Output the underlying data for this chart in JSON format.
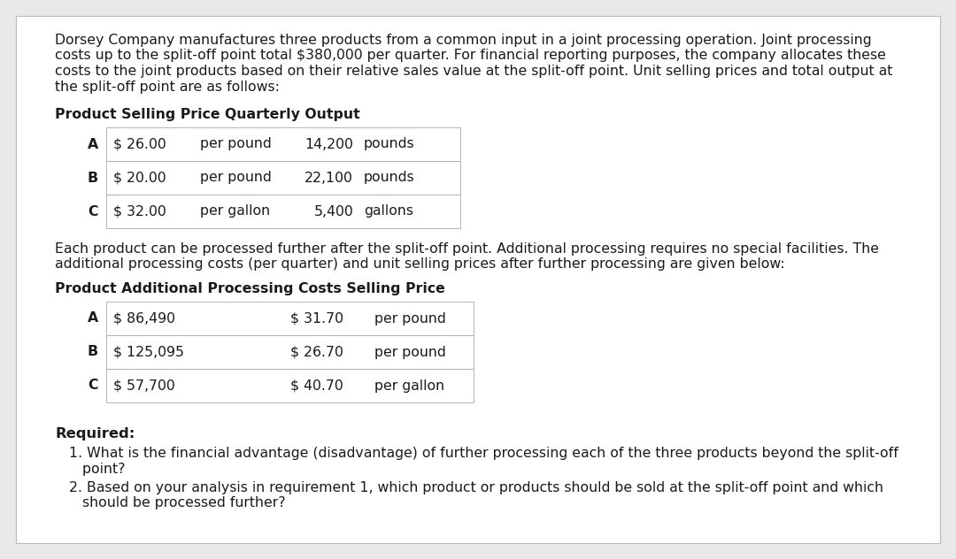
{
  "bg_color": "#e8e8e8",
  "page_bg": "#ffffff",
  "border_color": "#bbbbbb",
  "text_color": "#1a1a1a",
  "intro_text_lines": [
    "Dorsey Company manufactures three products from a common input in a joint processing operation. Joint processing",
    "costs up to the split-off point total $380,000 per quarter. For financial reporting purposes, the company allocates these",
    "costs to the joint products based on their relative sales value at the split-off point. Unit selling prices and total output at",
    "the split-off point are as follows:"
  ],
  "table1_header": "Product Selling Price Quarterly Output",
  "table1_rows": [
    [
      "A",
      "$ 26.00",
      "per pound",
      "14,200",
      "pounds"
    ],
    [
      "B",
      "$ 20.00",
      "per pound",
      "22,100",
      "pounds"
    ],
    [
      "C",
      "$ 32.00",
      "per gallon",
      "5,400",
      "gallons"
    ]
  ],
  "middle_text_lines": [
    "Each product can be processed further after the split-off point. Additional processing requires no special facilities. The",
    "additional processing costs (per quarter) and unit selling prices after further processing are given below:"
  ],
  "table2_header": "Product Additional Processing Costs Selling Price",
  "table2_rows": [
    [
      "A",
      "$ 86,490",
      "$ 31.70",
      "per pound"
    ],
    [
      "B",
      "$ 125,095",
      "$ 26.70",
      "per pound"
    ],
    [
      "C",
      "$ 57,700",
      "$ 40.70",
      "per gallon"
    ]
  ],
  "required_label": "Required:",
  "req1_lines": [
    "1. What is the financial advantage (disadvantage) of further processing each of the three products beyond the split-off",
    "   point?"
  ],
  "req2_lines": [
    "2. Based on your analysis in requirement 1, which product or products should be sold at the split-off point and which",
    "   should be processed further?"
  ],
  "font_size_body": 11.3,
  "font_size_bold": 11.3
}
